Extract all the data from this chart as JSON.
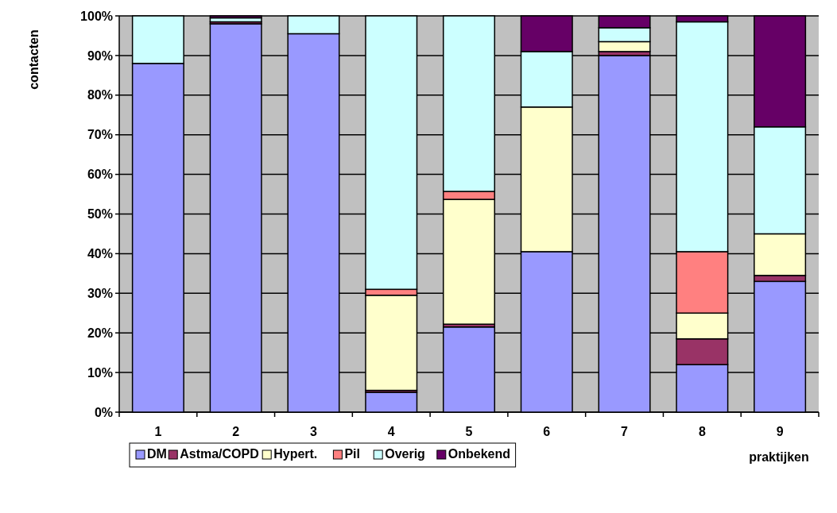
{
  "chart_data": {
    "type": "bar",
    "stacked": true,
    "xlabel": "praktijken",
    "ylabel": "contacten",
    "categories": [
      "1",
      "2",
      "3",
      "4",
      "5",
      "6",
      "7",
      "8",
      "9"
    ],
    "series": [
      {
        "name": "DM",
        "color": "#9999ff",
        "values": [
          88,
          98,
          95.5,
          5,
          21.5,
          40.5,
          90,
          12,
          33
        ]
      },
      {
        "name": "Astma/COPD",
        "color": "#993366",
        "values": [
          0,
          0.5,
          0,
          0.5,
          0.7,
          0,
          1,
          6.5,
          1.5
        ]
      },
      {
        "name": "Hypert.",
        "color": "#ffffcc",
        "values": [
          0,
          0,
          0,
          24,
          31.5,
          36.5,
          2.5,
          6.5,
          10.5
        ]
      },
      {
        "name": "Pil",
        "color": "#ff8080",
        "values": [
          0,
          0,
          0,
          1.5,
          2,
          0,
          0,
          15.5,
          0
        ]
      },
      {
        "name": "Overig",
        "color": "#ccffff",
        "values": [
          12,
          1,
          4.5,
          69,
          44.3,
          14,
          3.5,
          58,
          27
        ]
      },
      {
        "name": "Onbekend",
        "color": "#660066",
        "values": [
          0,
          0.5,
          0,
          0,
          0,
          9,
          3,
          1.5,
          28
        ]
      }
    ],
    "ylim": [
      0,
      100
    ],
    "yticks": [
      {
        "value": 0,
        "label": "0%"
      },
      {
        "value": 10,
        "label": "10%"
      },
      {
        "value": 20,
        "label": "20%"
      },
      {
        "value": 30,
        "label": "30%"
      },
      {
        "value": 40,
        "label": "40%"
      },
      {
        "value": 50,
        "label": "50%"
      },
      {
        "value": 60,
        "label": "60%"
      },
      {
        "value": 70,
        "label": "70%"
      },
      {
        "value": 80,
        "label": "80%"
      },
      {
        "value": 90,
        "label": "90%"
      },
      {
        "value": 100,
        "label": "100%"
      }
    ],
    "grid": "y",
    "legend": "bottom left"
  }
}
